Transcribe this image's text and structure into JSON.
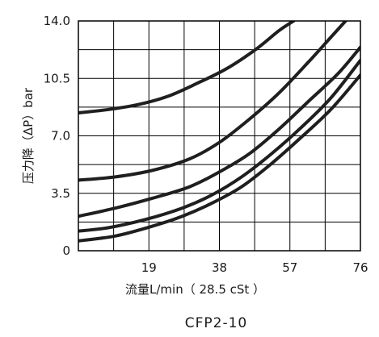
{
  "chart_data": {
    "type": "line",
    "title": "CFP2-10",
    "xlabel": "流量L/min（ 28.5 cSt ）",
    "ylabel": "压力降（ΔP）bar",
    "xlim": [
      0,
      76
    ],
    "ylim": [
      0,
      14.0
    ],
    "x_tick_labels": [
      "19",
      "38",
      "57",
      "76"
    ],
    "x_ticks": [
      19,
      38,
      57,
      76
    ],
    "y_tick_labels": [
      "0",
      "3.5",
      "7.0",
      "10.5",
      "14.0"
    ],
    "y_ticks": [
      0,
      3.5,
      7.0,
      10.5,
      14.0
    ],
    "grid": true,
    "series": [
      {
        "x": [
          0,
          8,
          16,
          24,
          32,
          40,
          48,
          54,
          58
        ],
        "y": [
          8.4,
          8.6,
          8.9,
          9.4,
          10.2,
          11.1,
          12.3,
          13.4,
          14.0
        ]
      },
      {
        "x": [
          0,
          10,
          20,
          30,
          38,
          46,
          54,
          62,
          68,
          72
        ],
        "y": [
          4.3,
          4.5,
          4.9,
          5.6,
          6.6,
          8.0,
          9.6,
          11.5,
          13.0,
          14.0
        ]
      },
      {
        "x": [
          0,
          10,
          20,
          30,
          38,
          46,
          54,
          62,
          70,
          76
        ],
        "y": [
          2.1,
          2.6,
          3.2,
          3.9,
          4.8,
          5.9,
          7.4,
          9.1,
          10.8,
          12.4
        ]
      },
      {
        "x": [
          0,
          8,
          18,
          28,
          36,
          44,
          52,
          60,
          68,
          76
        ],
        "y": [
          1.2,
          1.4,
          1.9,
          2.6,
          3.4,
          4.5,
          5.9,
          7.5,
          9.3,
          11.6
        ]
      },
      {
        "x": [
          0,
          10,
          20,
          28,
          36,
          44,
          52,
          60,
          68,
          76
        ],
        "y": [
          0.6,
          0.9,
          1.5,
          2.1,
          2.9,
          3.9,
          5.3,
          6.9,
          8.6,
          10.7
        ]
      }
    ]
  }
}
